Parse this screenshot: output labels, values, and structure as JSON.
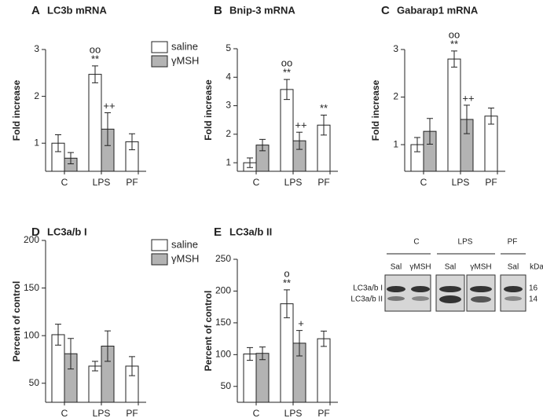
{
  "chart_data": [
    {
      "type": "bar",
      "panel": "A",
      "title": "LC3b mRNA",
      "y_label": "Fold increase",
      "categories": [
        "C",
        "LPS",
        "PF"
      ],
      "ylim": [
        0.4,
        3
      ],
      "yticks": [
        1,
        2,
        3
      ],
      "legend": true,
      "series": [
        {
          "name": "saline",
          "color": "#ffffff",
          "values": [
            1.0,
            2.47,
            1.03
          ],
          "errors": [
            0.18,
            0.18,
            0.17
          ],
          "annotations": [
            null,
            [
              "oo",
              "**"
            ],
            null
          ]
        },
        {
          "name": "γMSH",
          "color": "#b3b3b3",
          "values": [
            0.68,
            1.3,
            null
          ],
          "errors": [
            0.12,
            0.35,
            null
          ],
          "annotations": [
            null,
            [
              "++"
            ],
            null
          ]
        }
      ]
    },
    {
      "type": "bar",
      "panel": "B",
      "title": "Bnip-3 mRNA",
      "y_label": "Fold increase",
      "categories": [
        "C",
        "LPS",
        "PF"
      ],
      "ylim": [
        0.7,
        5
      ],
      "yticks": [
        1,
        2,
        3,
        4,
        5
      ],
      "legend": false,
      "series": [
        {
          "color": "#ffffff",
          "values": [
            1.0,
            3.57,
            2.32
          ],
          "errors": [
            0.17,
            0.35,
            0.35
          ],
          "annotations": [
            null,
            [
              "oo",
              "**"
            ],
            [
              "**"
            ]
          ]
        },
        {
          "color": "#b3b3b3",
          "values": [
            1.62,
            1.77,
            null
          ],
          "errors": [
            0.2,
            0.3,
            null
          ],
          "annotations": [
            null,
            [
              "++"
            ],
            null
          ]
        }
      ]
    },
    {
      "type": "bar",
      "panel": "C",
      "title": "Gabarap1 mRNA",
      "y_label": "Fold increase",
      "categories": [
        "C",
        "LPS",
        "PF"
      ],
      "ylim": [
        0.44,
        3
      ],
      "yticks": [
        1,
        2,
        3
      ],
      "legend": false,
      "series": [
        {
          "color": "#ffffff",
          "values": [
            1.0,
            2.8,
            1.6
          ],
          "errors": [
            0.15,
            0.17,
            0.17
          ],
          "annotations": [
            null,
            [
              "oo",
              "**"
            ],
            null
          ]
        },
        {
          "color": "#b3b3b3",
          "values": [
            1.28,
            1.53,
            null
          ],
          "errors": [
            0.27,
            0.3,
            null
          ],
          "annotations": [
            null,
            [
              "++"
            ],
            null
          ]
        }
      ]
    },
    {
      "type": "bar",
      "panel": "D",
      "title": "LC3a/b I",
      "y_label": "Percent of control",
      "categories": [
        "C",
        "LPS",
        "PF"
      ],
      "ylim": [
        30,
        200
      ],
      "yticks": [
        50,
        100,
        150,
        200
      ],
      "legend": true,
      "series": [
        {
          "name": "saline",
          "color": "#ffffff",
          "values": [
            101,
            68,
            68
          ],
          "errors": [
            11,
            5,
            10
          ],
          "annotations": [
            null,
            null,
            null
          ]
        },
        {
          "name": "γMSH",
          "color": "#b3b3b3",
          "values": [
            81,
            89,
            null
          ],
          "errors": [
            16,
            16,
            null
          ],
          "annotations": [
            null,
            null,
            null
          ]
        }
      ]
    },
    {
      "type": "bar",
      "panel": "E",
      "title": "LC3a/b II",
      "y_label": "Percent of control",
      "categories": [
        "C",
        "LPS",
        "PF"
      ],
      "ylim": [
        25,
        250
      ],
      "yticks": [
        50,
        100,
        150,
        200,
        250
      ],
      "legend": false,
      "series": [
        {
          "color": "#ffffff",
          "values": [
            101,
            180,
            125
          ],
          "errors": [
            10,
            22,
            12
          ],
          "annotations": [
            null,
            [
              "o",
              "**"
            ],
            null
          ]
        },
        {
          "color": "#b3b3b3",
          "values": [
            102,
            118,
            null
          ],
          "errors": [
            10,
            20,
            null
          ],
          "annotations": [
            null,
            [
              "+"
            ],
            null
          ]
        }
      ]
    }
  ],
  "blot": {
    "groups": [
      "C",
      "LPS",
      "PF"
    ],
    "lanes": [
      "Sal",
      "γMSH",
      "Sal",
      "γMSH",
      "Sal"
    ],
    "unit": "kDa",
    "bands": [
      "LC3a/b I",
      "LC3a/b II"
    ],
    "sizes": [
      "16",
      "14"
    ]
  }
}
